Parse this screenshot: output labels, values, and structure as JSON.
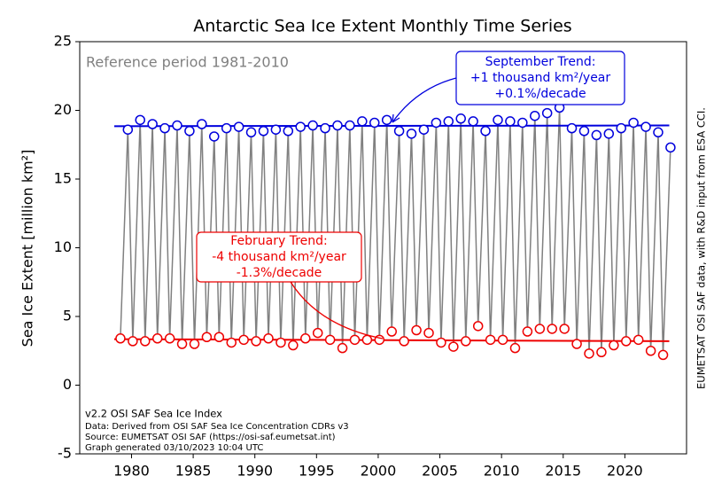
{
  "chart_data": {
    "type": "line",
    "title": "Antarctic Sea Ice Extent Monthly Time Series",
    "ylabel": "Sea Ice Extent [million km²]",
    "reference_note": "Reference period 1981-2010",
    "footer": [
      "v2.2 OSI SAF Sea Ice Index",
      "Data: Derived from OSI SAF Sea Ice Concentration CDRs v3",
      "Source: EUMETSAT OSI SAF (https://osi-saf.eumetsat.int)",
      "Graph generated 03/10/2023 10:04 UTC"
    ],
    "side_note": "EUMETSAT OSI SAF data, with R&D input from ESA CCI.",
    "xlim": [
      1975.8,
      2025.0
    ],
    "xticks": [
      1980,
      1985,
      1990,
      1995,
      2000,
      2005,
      2010,
      2015,
      2020
    ],
    "ylim": [
      -5,
      25
    ],
    "yticks": [
      -5,
      0,
      5,
      10,
      15,
      20,
      25
    ],
    "line_color": "#808080",
    "series": [
      {
        "name": "February",
        "color": "#ee0000",
        "x": [
          1979.1,
          1980.1,
          1981.1,
          1982.1,
          1983.1,
          1984.1,
          1985.1,
          1986.1,
          1987.1,
          1988.1,
          1989.1,
          1990.1,
          1991.1,
          1992.1,
          1993.1,
          1994.1,
          1995.1,
          1996.1,
          1997.1,
          1998.1,
          1999.1,
          2000.1,
          2001.1,
          2002.1,
          2003.1,
          2004.1,
          2005.1,
          2006.1,
          2007.1,
          2008.1,
          2009.1,
          2010.1,
          2011.1,
          2012.1,
          2013.1,
          2014.1,
          2015.1,
          2016.1,
          2017.1,
          2018.1,
          2019.1,
          2020.1,
          2021.1,
          2022.1,
          2023.1
        ],
        "values": [
          3.4,
          3.2,
          3.2,
          3.4,
          3.4,
          3.0,
          3.0,
          3.5,
          3.5,
          3.1,
          3.3,
          3.2,
          3.4,
          3.1,
          2.9,
          3.4,
          3.8,
          3.3,
          2.7,
          3.3,
          3.3,
          3.3,
          3.9,
          3.2,
          4.0,
          3.8,
          3.1,
          2.8,
          3.2,
          4.3,
          3.3,
          3.3,
          2.7,
          3.9,
          4.1,
          4.1,
          4.1,
          3.0,
          2.3,
          2.4,
          2.9,
          3.2,
          3.3,
          2.5,
          2.2
        ]
      },
      {
        "name": "September",
        "color": "#0000dd",
        "x": [
          1979.7,
          1980.7,
          1981.7,
          1982.7,
          1983.7,
          1984.7,
          1985.7,
          1986.7,
          1987.7,
          1988.7,
          1989.7,
          1990.7,
          1991.7,
          1992.7,
          1993.7,
          1994.7,
          1995.7,
          1996.7,
          1997.7,
          1998.7,
          1999.7,
          2000.7,
          2001.7,
          2002.7,
          2003.7,
          2004.7,
          2005.7,
          2006.7,
          2007.7,
          2008.7,
          2009.7,
          2010.7,
          2011.7,
          2012.7,
          2013.7,
          2014.7,
          2015.7,
          2016.7,
          2017.7,
          2018.7,
          2019.7,
          2020.7,
          2021.7,
          2022.7,
          2023.7
        ],
        "values": [
          18.6,
          19.3,
          19.0,
          18.7,
          18.9,
          18.5,
          19.0,
          18.1,
          18.7,
          18.8,
          18.4,
          18.5,
          18.6,
          18.5,
          18.8,
          18.9,
          18.7,
          18.9,
          18.9,
          19.2,
          19.1,
          19.3,
          18.5,
          18.3,
          18.6,
          19.1,
          19.2,
          19.4,
          19.2,
          18.5,
          19.3,
          19.2,
          19.1,
          19.6,
          19.8,
          20.2,
          18.7,
          18.5,
          18.2,
          18.3,
          18.7,
          19.1,
          18.8,
          18.4,
          17.3
        ]
      }
    ],
    "trends": [
      {
        "color": "#ee0000",
        "x": [
          1978.6,
          2023.6
        ],
        "values": [
          3.35,
          3.2
        ],
        "label": [
          "February Trend:",
          "-4 thousand km²/year",
          "-1.3%/decade"
        ]
      },
      {
        "color": "#0000dd",
        "x": [
          1978.6,
          2023.6
        ],
        "values": [
          18.85,
          18.9
        ],
        "label": [
          "September Trend:",
          "+1 thousand km²/year",
          "+0.1%/decade"
        ]
      }
    ]
  }
}
